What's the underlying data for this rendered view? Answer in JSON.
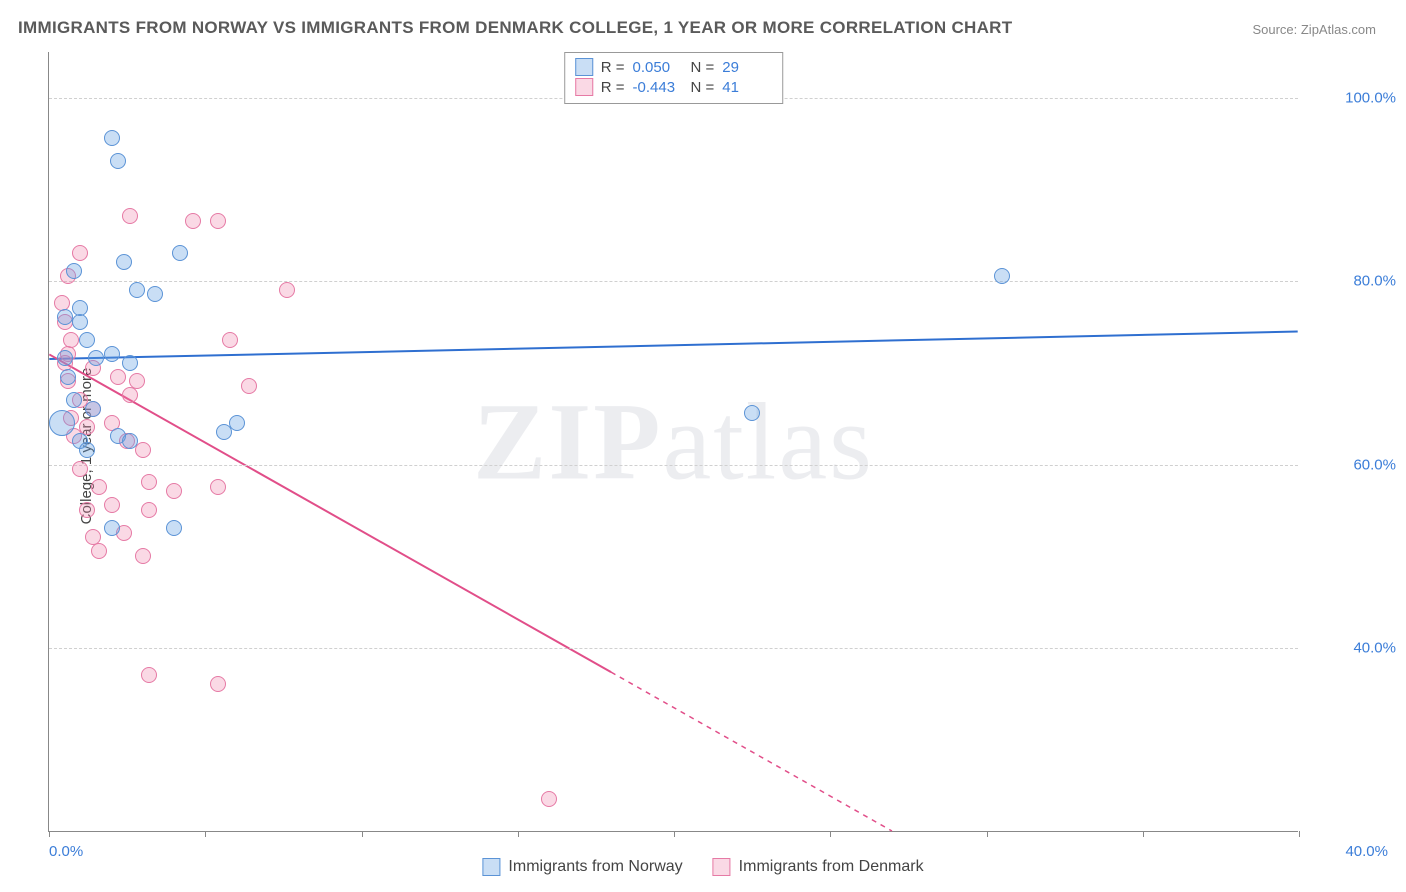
{
  "title": "IMMIGRANTS FROM NORWAY VS IMMIGRANTS FROM DENMARK COLLEGE, 1 YEAR OR MORE CORRELATION CHART",
  "source_prefix": "Source: ",
  "source_name": "ZipAtlas.com",
  "y_axis_label": "College, 1 year or more",
  "watermark": "ZIPatlas",
  "chart": {
    "type": "scatter",
    "background_color": "#ffffff",
    "grid_color": "#d0d0d0",
    "axis_color": "#888888",
    "tick_label_color": "#3b7dd8",
    "x_range": [
      0,
      40
    ],
    "y_range": [
      20,
      105
    ],
    "y_ticks": [
      40,
      60,
      80,
      100
    ],
    "y_tick_labels": [
      "40.0%",
      "60.0%",
      "80.0%",
      "100.0%"
    ],
    "x_tick_positions": [
      0,
      5,
      10,
      15,
      20,
      25,
      30,
      35,
      40
    ],
    "x_tick_labels_shown": {
      "0": "0.0%",
      "40": "40.0%"
    },
    "marker_radius": 8,
    "marker_border_width": 1.5,
    "trend_line_width": 2
  },
  "series": [
    {
      "name": "Immigrants from Norway",
      "color_fill": "rgba(100,160,225,0.35)",
      "color_stroke": "#5b93d6",
      "line_color": "#2f6fd0",
      "R": "0.050",
      "N": "29",
      "trend": {
        "x1": 0,
        "y1": 71.5,
        "x2": 40,
        "y2": 74.5,
        "dashed_from_x": null
      },
      "points": [
        {
          "x": 0.4,
          "y": 64.5,
          "r": 13
        },
        {
          "x": 2.0,
          "y": 95.5
        },
        {
          "x": 2.2,
          "y": 93.0
        },
        {
          "x": 0.8,
          "y": 81.0
        },
        {
          "x": 2.4,
          "y": 82.0
        },
        {
          "x": 4.2,
          "y": 83.0
        },
        {
          "x": 2.8,
          "y": 79.0
        },
        {
          "x": 3.4,
          "y": 78.5
        },
        {
          "x": 0.5,
          "y": 76.0
        },
        {
          "x": 1.0,
          "y": 75.5
        },
        {
          "x": 1.2,
          "y": 73.5
        },
        {
          "x": 1.5,
          "y": 71.5
        },
        {
          "x": 2.0,
          "y": 72.0
        },
        {
          "x": 0.6,
          "y": 69.5
        },
        {
          "x": 2.6,
          "y": 71.0
        },
        {
          "x": 1.0,
          "y": 62.5
        },
        {
          "x": 1.2,
          "y": 61.5
        },
        {
          "x": 5.6,
          "y": 63.5
        },
        {
          "x": 6.0,
          "y": 64.5
        },
        {
          "x": 2.2,
          "y": 63.0
        },
        {
          "x": 2.6,
          "y": 62.5
        },
        {
          "x": 2.0,
          "y": 53.0
        },
        {
          "x": 4.0,
          "y": 53.0
        },
        {
          "x": 22.5,
          "y": 65.5
        },
        {
          "x": 30.5,
          "y": 80.5
        },
        {
          "x": 0.8,
          "y": 67.0
        },
        {
          "x": 1.4,
          "y": 66.0
        },
        {
          "x": 0.5,
          "y": 71.5
        },
        {
          "x": 1.0,
          "y": 77.0
        }
      ]
    },
    {
      "name": "Immigrants from Denmark",
      "color_fill": "rgba(240,130,170,0.30)",
      "color_stroke": "#e67aa5",
      "line_color": "#e14e89",
      "R": "-0.443",
      "N": "41",
      "trend": {
        "x1": 0,
        "y1": 72.0,
        "x2": 27.0,
        "y2": 20.0,
        "dashed_from_x": 18.0
      },
      "points": [
        {
          "x": 2.6,
          "y": 87.0
        },
        {
          "x": 4.6,
          "y": 86.5
        },
        {
          "x": 5.4,
          "y": 86.5
        },
        {
          "x": 1.0,
          "y": 83.0
        },
        {
          "x": 0.6,
          "y": 80.5
        },
        {
          "x": 7.6,
          "y": 79.0
        },
        {
          "x": 5.8,
          "y": 73.5
        },
        {
          "x": 0.4,
          "y": 77.5
        },
        {
          "x": 0.5,
          "y": 75.5
        },
        {
          "x": 0.7,
          "y": 73.5
        },
        {
          "x": 0.5,
          "y": 71.0
        },
        {
          "x": 0.6,
          "y": 69.0
        },
        {
          "x": 1.4,
          "y": 70.5
        },
        {
          "x": 2.2,
          "y": 69.5
        },
        {
          "x": 2.8,
          "y": 69.0
        },
        {
          "x": 2.6,
          "y": 67.5
        },
        {
          "x": 6.4,
          "y": 68.5
        },
        {
          "x": 1.0,
          "y": 67.0
        },
        {
          "x": 1.4,
          "y": 66.0
        },
        {
          "x": 0.7,
          "y": 65.0
        },
        {
          "x": 1.2,
          "y": 64.0
        },
        {
          "x": 2.0,
          "y": 64.5
        },
        {
          "x": 2.5,
          "y": 62.5
        },
        {
          "x": 3.0,
          "y": 61.5
        },
        {
          "x": 1.0,
          "y": 59.5
        },
        {
          "x": 1.6,
          "y": 57.5
        },
        {
          "x": 3.2,
          "y": 58.0
        },
        {
          "x": 4.0,
          "y": 57.0
        },
        {
          "x": 5.4,
          "y": 57.5
        },
        {
          "x": 1.2,
          "y": 55.0
        },
        {
          "x": 2.0,
          "y": 55.5
        },
        {
          "x": 3.2,
          "y": 55.0
        },
        {
          "x": 2.4,
          "y": 52.5
        },
        {
          "x": 1.4,
          "y": 52.0
        },
        {
          "x": 1.6,
          "y": 50.5
        },
        {
          "x": 3.0,
          "y": 50.0
        },
        {
          "x": 3.2,
          "y": 37.0
        },
        {
          "x": 5.4,
          "y": 36.0
        },
        {
          "x": 16.0,
          "y": 23.5
        },
        {
          "x": 0.6,
          "y": 72.0
        },
        {
          "x": 0.8,
          "y": 63.0
        }
      ]
    }
  ],
  "top_legend": {
    "R_label": "R =",
    "N_label": "N ="
  },
  "bottom_legend_items": [
    "Immigrants from Norway",
    "Immigrants from Denmark"
  ]
}
